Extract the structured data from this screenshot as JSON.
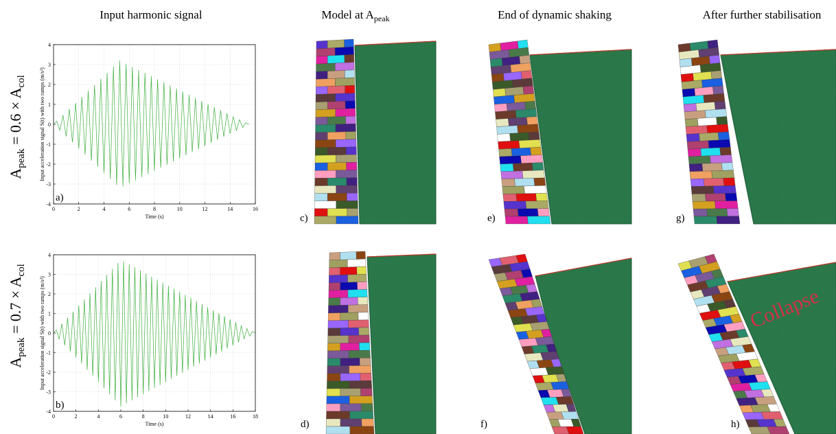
{
  "column_titles": [
    "Input harmonic signal",
    {
      "text": "Model at A",
      "sub": "peak"
    },
    "End of dynamic shaking",
    "After further stabilisation"
  ],
  "row_labels": [
    {
      "a": "A",
      "a_sub": "peak",
      "eq": " = 0.6 × A",
      "b_sub": "col"
    },
    {
      "a": "A",
      "a_sub": "peak",
      "eq": " = 0.7 × A",
      "b_sub": "col"
    }
  ],
  "chart_data": [
    {
      "type": "line",
      "panel_label": "a)",
      "x_label": "Time (s)",
      "y_label": "Input acceleration signal S(t) with two ramps (m/s²)",
      "x": [
        0,
        0.25,
        0.5,
        0.75,
        1,
        1.25,
        1.5,
        1.75,
        2,
        2.25,
        2.5,
        2.75,
        3,
        3.25,
        3.5,
        3.75,
        4,
        4.25,
        4.5,
        4.75,
        5,
        5.25,
        5.5,
        5.75,
        6,
        6.25,
        6.5,
        6.75,
        7,
        7.25,
        7.5,
        7.75,
        8,
        8.25,
        8.5,
        8.75,
        9,
        9.25,
        9.5,
        9.75,
        10,
        10.25,
        10.5,
        10.75,
        11,
        11.25,
        11.5,
        11.75,
        12,
        12.25,
        12.5,
        12.75,
        13,
        13.25,
        13.5,
        13.75,
        14,
        14.25,
        14.5,
        14.75,
        15,
        15.25,
        15.5
      ],
      "series": [
        {
          "color": "#3cae3c",
          "values": [
            0,
            0.15,
            -0.3,
            0.46,
            -0.61,
            0.76,
            -0.91,
            1.07,
            -1.22,
            1.37,
            -1.52,
            1.68,
            -1.83,
            1.98,
            -2.13,
            2.29,
            -2.44,
            2.59,
            -2.74,
            2.9,
            -3.05,
            3.2,
            -3.12,
            3.04,
            -2.97,
            2.89,
            -2.81,
            2.73,
            -2.65,
            2.58,
            -2.5,
            2.42,
            -2.34,
            2.26,
            -2.19,
            2.11,
            -2.03,
            1.95,
            -1.87,
            1.8,
            -1.72,
            1.64,
            -1.56,
            1.48,
            -1.4,
            1.33,
            -1.25,
            1.17,
            -1.09,
            1.01,
            -0.94,
            0.86,
            -0.78,
            0.7,
            -0.62,
            0.55,
            -0.47,
            0.39,
            -0.31,
            0.23,
            -0.16,
            0.08,
            0
          ]
        }
      ],
      "xlim": [
        0,
        16
      ],
      "ylim": [
        -4,
        4
      ],
      "xticks": [
        0,
        2,
        4,
        6,
        8,
        10,
        12,
        14,
        16
      ],
      "yticks": [
        -4,
        -3,
        -2,
        -1,
        0,
        1,
        2,
        3,
        4
      ],
      "grid": true
    },
    {
      "type": "line",
      "panel_label": "b)",
      "x_label": "Time (s)",
      "y_label": "Input acceleration signal S(t) with two ramps (m/s²)",
      "x": [
        0,
        0.25,
        0.5,
        0.75,
        1,
        1.25,
        1.5,
        1.75,
        2,
        2.25,
        2.5,
        2.75,
        3,
        3.25,
        3.5,
        3.75,
        4,
        4.25,
        4.5,
        4.75,
        5,
        5.25,
        5.5,
        5.75,
        6,
        6.25,
        6.5,
        6.75,
        7,
        7.25,
        7.5,
        7.75,
        8,
        8.25,
        8.5,
        8.75,
        9,
        9.25,
        9.5,
        9.75,
        10,
        10.25,
        10.5,
        10.75,
        11,
        11.25,
        11.5,
        11.75,
        12,
        12.25,
        12.5,
        12.75,
        13,
        13.25,
        13.5,
        13.75,
        14,
        14.25,
        14.5,
        14.75,
        15,
        15.25,
        15.5,
        15.75,
        16,
        16.25,
        16.5,
        16.75,
        17,
        17.25,
        17.5,
        17.75,
        18
      ],
      "series": [
        {
          "color": "#3cae3c",
          "values": [
            0,
            0.16,
            -0.31,
            0.47,
            -0.63,
            0.78,
            -0.94,
            1.09,
            -1.25,
            1.41,
            -1.56,
            1.72,
            -1.88,
            2.03,
            -2.19,
            2.34,
            -2.5,
            2.66,
            -2.81,
            2.97,
            -3.13,
            3.28,
            -3.44,
            3.59,
            -3.75,
            3.67,
            -3.59,
            3.52,
            -3.44,
            3.36,
            -3.28,
            3.2,
            -3.13,
            3.05,
            -2.97,
            2.89,
            -2.81,
            2.73,
            -2.66,
            2.58,
            -2.5,
            2.42,
            -2.34,
            2.27,
            -2.19,
            2.11,
            -2.03,
            1.95,
            -1.88,
            1.8,
            -1.72,
            1.64,
            -1.56,
            1.48,
            -1.41,
            1.33,
            -1.25,
            1.17,
            -1.09,
            1.02,
            -0.94,
            0.86,
            -0.78,
            0.7,
            -0.63,
            0.55,
            -0.47,
            0.39,
            -0.31,
            0.23,
            -0.16,
            0.08,
            0
          ]
        }
      ],
      "xlim": [
        0,
        18
      ],
      "ylim": [
        -4,
        4
      ],
      "xticks": [
        0,
        2,
        4,
        6,
        8,
        10,
        12,
        14,
        16,
        18
      ],
      "yticks": [
        -4,
        -3,
        -2,
        -1,
        0,
        1,
        2,
        3,
        4
      ],
      "grid": true
    }
  ],
  "image_panels": [
    "c)",
    "e)",
    "g)",
    "d)",
    "f)",
    "h)"
  ],
  "annotation": "Collapse"
}
